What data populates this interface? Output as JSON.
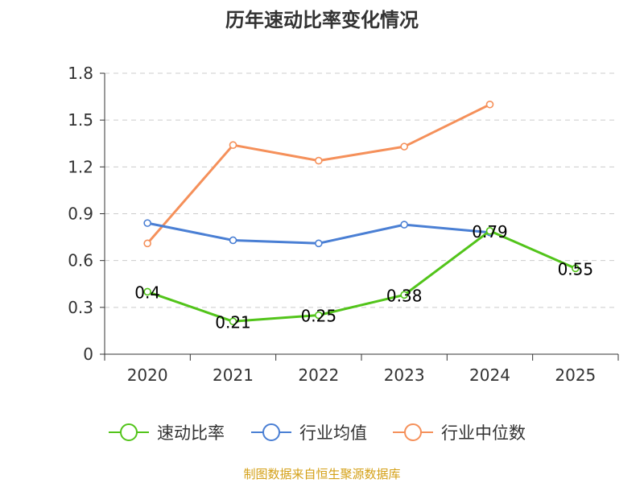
{
  "chart_data": {
    "type": "line",
    "title": "历年速动比率变化情况",
    "categories": [
      "2020",
      "2021",
      "2022",
      "2023",
      "2024",
      "2025"
    ],
    "ylim": [
      0,
      1.8
    ],
    "yticks": [
      0,
      0.3,
      0.6,
      0.9,
      1.2,
      1.5,
      1.8
    ],
    "ytick_labels": [
      "0",
      "0.3",
      "0.6",
      "0.9",
      "1.2",
      "1.5",
      "1.8"
    ],
    "grid": true,
    "legend_position": "bottom",
    "series": [
      {
        "name": "速动比率",
        "color": "#52c41a",
        "values": [
          0.4,
          0.21,
          0.25,
          0.38,
          0.79,
          0.55
        ],
        "labels": [
          "0.4",
          "0.21",
          "0.25",
          "0.38",
          "0.79",
          "0.55"
        ]
      },
      {
        "name": "行业均值",
        "color": "#4a7fd4",
        "values": [
          0.84,
          0.73,
          0.71,
          0.83,
          0.78,
          null
        ],
        "labels": null
      },
      {
        "name": "行业中位数",
        "color": "#f5905a",
        "values": [
          0.71,
          1.34,
          1.24,
          1.33,
          1.6,
          null
        ],
        "labels": null
      }
    ]
  },
  "source_text": "制图数据来自恒生聚源数据库",
  "colors": {
    "axis": "#333333",
    "grid": "#cccccc",
    "source": "#d4a017"
  }
}
